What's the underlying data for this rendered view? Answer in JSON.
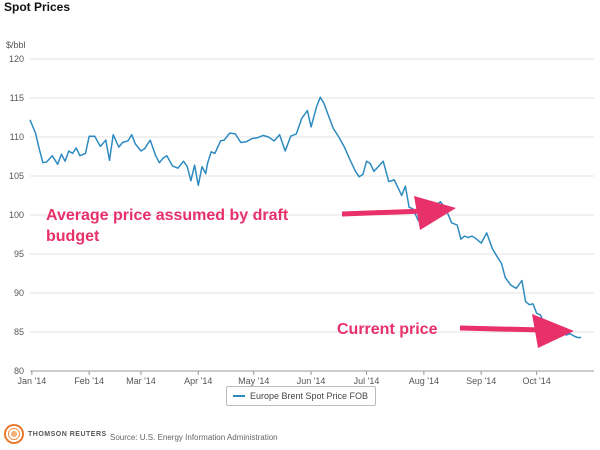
{
  "title": "Spot Prices",
  "unit_label": "$/bbl",
  "legend_label": "Europe Brent Spot Price FOB",
  "source": "Source: U.S. Energy Information Administration",
  "logo_text": "THOMSON REUTERS",
  "colors": {
    "line": "#2e8bc0",
    "accent": "#e8306a",
    "grid": "#e3e3e3"
  },
  "annotations": {
    "budget_line1": "Average price assumed by draft",
    "budget_line2": "budget",
    "current": "Current price"
  },
  "chart_data": {
    "type": "line",
    "title": "Spot Prices",
    "xlabel": "",
    "ylabel": "$/bbl",
    "ylim": [
      80,
      120
    ],
    "yticks": [
      80,
      85,
      90,
      95,
      100,
      105,
      110,
      115,
      120
    ],
    "xlim": [
      0,
      305
    ],
    "x_tick_labels": [
      "Jan '14",
      "Feb '14",
      "Mar '14",
      "Apr '14",
      "May '14",
      "Jun '14",
      "Jul '14",
      "Aug '14",
      "Sep '14",
      "Oct '14"
    ],
    "x_tick_days": [
      1,
      32,
      60,
      91,
      121,
      152,
      182,
      213,
      244,
      274
    ],
    "series": [
      {
        "name": "Europe Brent Spot Price FOB",
        "x": [
          0,
          3,
          5,
          7,
          9,
          12,
          15,
          17,
          19,
          21,
          23,
          25,
          27,
          30,
          32,
          35,
          38,
          41,
          43,
          45,
          48,
          50,
          53,
          55,
          57,
          60,
          62,
          65,
          68,
          70,
          72,
          74,
          77,
          80,
          83,
          85,
          87,
          89,
          91,
          93,
          95,
          96,
          98,
          100,
          103,
          105,
          108,
          111,
          114,
          117,
          120,
          123,
          126,
          129,
          132,
          135,
          138,
          141,
          144,
          147,
          150,
          152,
          155,
          157,
          159,
          161,
          164,
          167,
          170,
          173,
          176,
          178,
          180,
          182,
          184,
          186,
          188,
          191,
          194,
          197,
          199,
          201,
          203,
          205,
          207,
          210,
          213,
          215,
          218,
          220,
          222,
          225,
          228,
          231,
          233,
          235,
          237,
          239,
          241,
          244,
          247,
          250,
          252,
          255,
          257,
          260,
          263,
          266,
          268,
          270,
          272,
          274,
          276,
          278,
          280,
          282,
          284,
          286,
          288,
          290,
          292,
          294,
          296,
          298
        ],
        "y": [
          112.2,
          110.5,
          108.5,
          106.7,
          106.8,
          107.6,
          106.5,
          107.8,
          106.9,
          108.2,
          107.9,
          108.6,
          107.6,
          107.9,
          110.1,
          110.1,
          108.8,
          109.6,
          107.0,
          110.3,
          108.7,
          109.3,
          109.5,
          110.3,
          109.1,
          108.2,
          108.5,
          109.6,
          107.6,
          106.7,
          107.3,
          107.6,
          106.3,
          106.0,
          106.9,
          106.2,
          104.4,
          106.4,
          103.8,
          106.2,
          105.3,
          106.6,
          108.1,
          107.9,
          109.5,
          109.6,
          110.5,
          110.4,
          109.3,
          109.4,
          109.8,
          109.9,
          110.2,
          110.0,
          109.5,
          110.3,
          108.2,
          110.1,
          110.4,
          112.4,
          113.4,
          111.3,
          113.9,
          115.1,
          114.3,
          113.0,
          111.1,
          110.0,
          108.7,
          107.1,
          105.6,
          104.9,
          105.2,
          106.9,
          106.6,
          105.6,
          106.1,
          106.9,
          104.3,
          104.5,
          103.5,
          102.5,
          103.7,
          101.0,
          100.8,
          99.3,
          100.0,
          100.6,
          101.0,
          101.4,
          101.7,
          100.7,
          99.0,
          98.7,
          96.9,
          97.3,
          97.1,
          97.3,
          97.0,
          96.4,
          97.7,
          95.7,
          94.9,
          93.8,
          92.0,
          91.0,
          90.6,
          91.6,
          88.9,
          88.5,
          88.6,
          87.4,
          87.2,
          86.1,
          84.7,
          84.2,
          84.4,
          85.6,
          85.1,
          84.6,
          84.8,
          84.5,
          84.3,
          84.3
        ]
      }
    ]
  }
}
